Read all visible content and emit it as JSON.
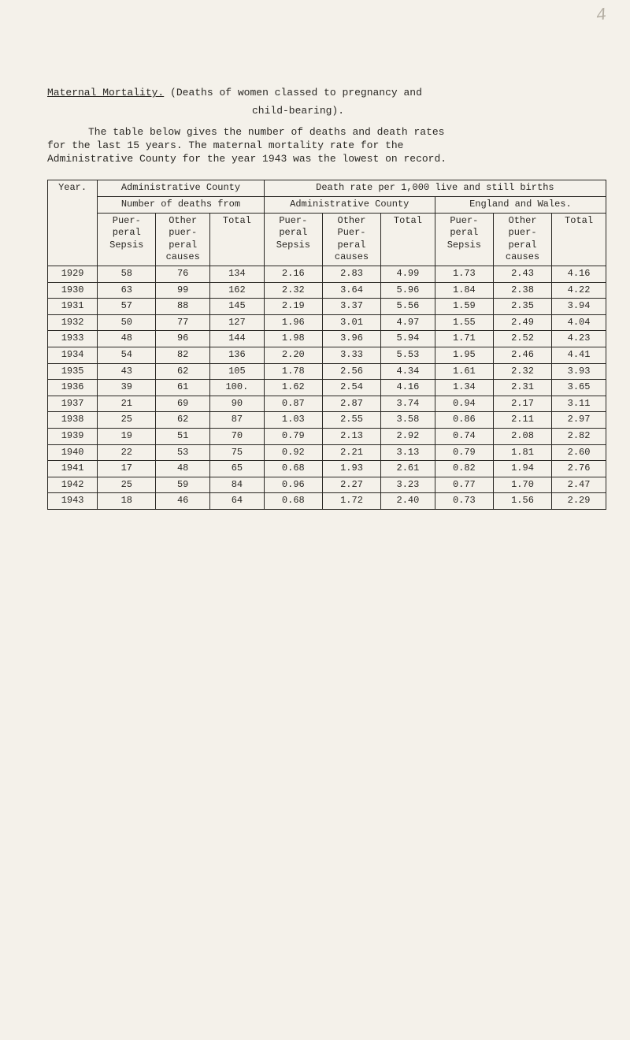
{
  "smudge": "4",
  "title": {
    "label": "Maternal Mortality.",
    "rest": "(Deaths of women classed to pregnancy and",
    "line2": "child-bearing)."
  },
  "paragraph": {
    "l1": "The table below gives the number of deaths and death rates",
    "l2": "for the last 15 years.  The maternal mortality rate for the",
    "l3": "Administrative County for the year 1943 was the lowest on record."
  },
  "headers": {
    "year": "Year.",
    "group1": "Administrative County",
    "group1sub": "Number of deaths from",
    "group2": "Death rate per 1,000 live and still births",
    "group2a": "Administrative County",
    "group2b": "England and Wales.",
    "puer_sepsis": "Puer-\nperal\nSepsis",
    "other_causes": "Other\npuer-\nperal\ncauses",
    "total": "Total",
    "other_causes2": "Other\nPuer-\nperal\ncauses"
  },
  "rows": [
    {
      "year": "1929",
      "a": "58",
      "b": "76",
      "c": "134",
      "d": "2.16",
      "e": "2.83",
      "f": "4.99",
      "g": "1.73",
      "h": "2.43",
      "i": "4.16"
    },
    {
      "year": "1930",
      "a": "63",
      "b": "99",
      "c": "162",
      "d": "2.32",
      "e": "3.64",
      "f": "5.96",
      "g": "1.84",
      "h": "2.38",
      "i": "4.22"
    },
    {
      "year": "1931",
      "a": "57",
      "b": "88",
      "c": "145",
      "d": "2.19",
      "e": "3.37",
      "f": "5.56",
      "g": "1.59",
      "h": "2.35",
      "i": "3.94"
    },
    {
      "year": "1932",
      "a": "50",
      "b": "77",
      "c": "127",
      "d": "1.96",
      "e": "3.01",
      "f": "4.97",
      "g": "1.55",
      "h": "2.49",
      "i": "4.04"
    },
    {
      "year": "1933",
      "a": "48",
      "b": "96",
      "c": "144",
      "d": "1.98",
      "e": "3.96",
      "f": "5.94",
      "g": "1.71",
      "h": "2.52",
      "i": "4.23"
    },
    {
      "year": "1934",
      "a": "54",
      "b": "82",
      "c": "136",
      "d": "2.20",
      "e": "3.33",
      "f": "5.53",
      "g": "1.95",
      "h": "2.46",
      "i": "4.41"
    },
    {
      "year": "1935",
      "a": "43",
      "b": "62",
      "c": "105",
      "d": "1.78",
      "e": "2.56",
      "f": "4.34",
      "g": "1.61",
      "h": "2.32",
      "i": "3.93"
    },
    {
      "year": "1936",
      "a": "39",
      "b": "61",
      "c": "100.",
      "d": "1.62",
      "e": "2.54",
      "f": "4.16",
      "g": "1.34",
      "h": "2.31",
      "i": "3.65"
    },
    {
      "year": "1937",
      "a": "21",
      "b": "69",
      "c": "90",
      "d": "0.87",
      "e": "2.87",
      "f": "3.74",
      "g": "0.94",
      "h": "2.17",
      "i": "3.11"
    },
    {
      "year": "1938",
      "a": "25",
      "b": "62",
      "c": "87",
      "d": "1.03",
      "e": "2.55",
      "f": "3.58",
      "g": "0.86",
      "h": "2.11",
      "i": "2.97"
    },
    {
      "year": "1939",
      "a": "19",
      "b": "51",
      "c": "70",
      "d": "0.79",
      "e": "2.13",
      "f": "2.92",
      "g": "0.74",
      "h": "2.08",
      "i": "2.82"
    },
    {
      "year": "1940",
      "a": "22",
      "b": "53",
      "c": "75",
      "d": "0.92",
      "e": "2.21",
      "f": "3.13",
      "g": "0.79",
      "h": "1.81",
      "i": "2.60"
    },
    {
      "year": "1941",
      "a": "17",
      "b": "48",
      "c": "65",
      "d": "0.68",
      "e": "1.93",
      "f": "2.61",
      "g": "0.82",
      "h": "1.94",
      "i": "2.76"
    },
    {
      "year": "1942",
      "a": "25",
      "b": "59",
      "c": "84",
      "d": "0.96",
      "e": "2.27",
      "f": "3.23",
      "g": "0.77",
      "h": "1.70",
      "i": "2.47"
    },
    {
      "year": "1943",
      "a": "18",
      "b": "46",
      "c": "64",
      "d": "0.68",
      "e": "1.72",
      "f": "2.40",
      "g": "0.73",
      "h": "1.56",
      "i": "2.29"
    }
  ]
}
